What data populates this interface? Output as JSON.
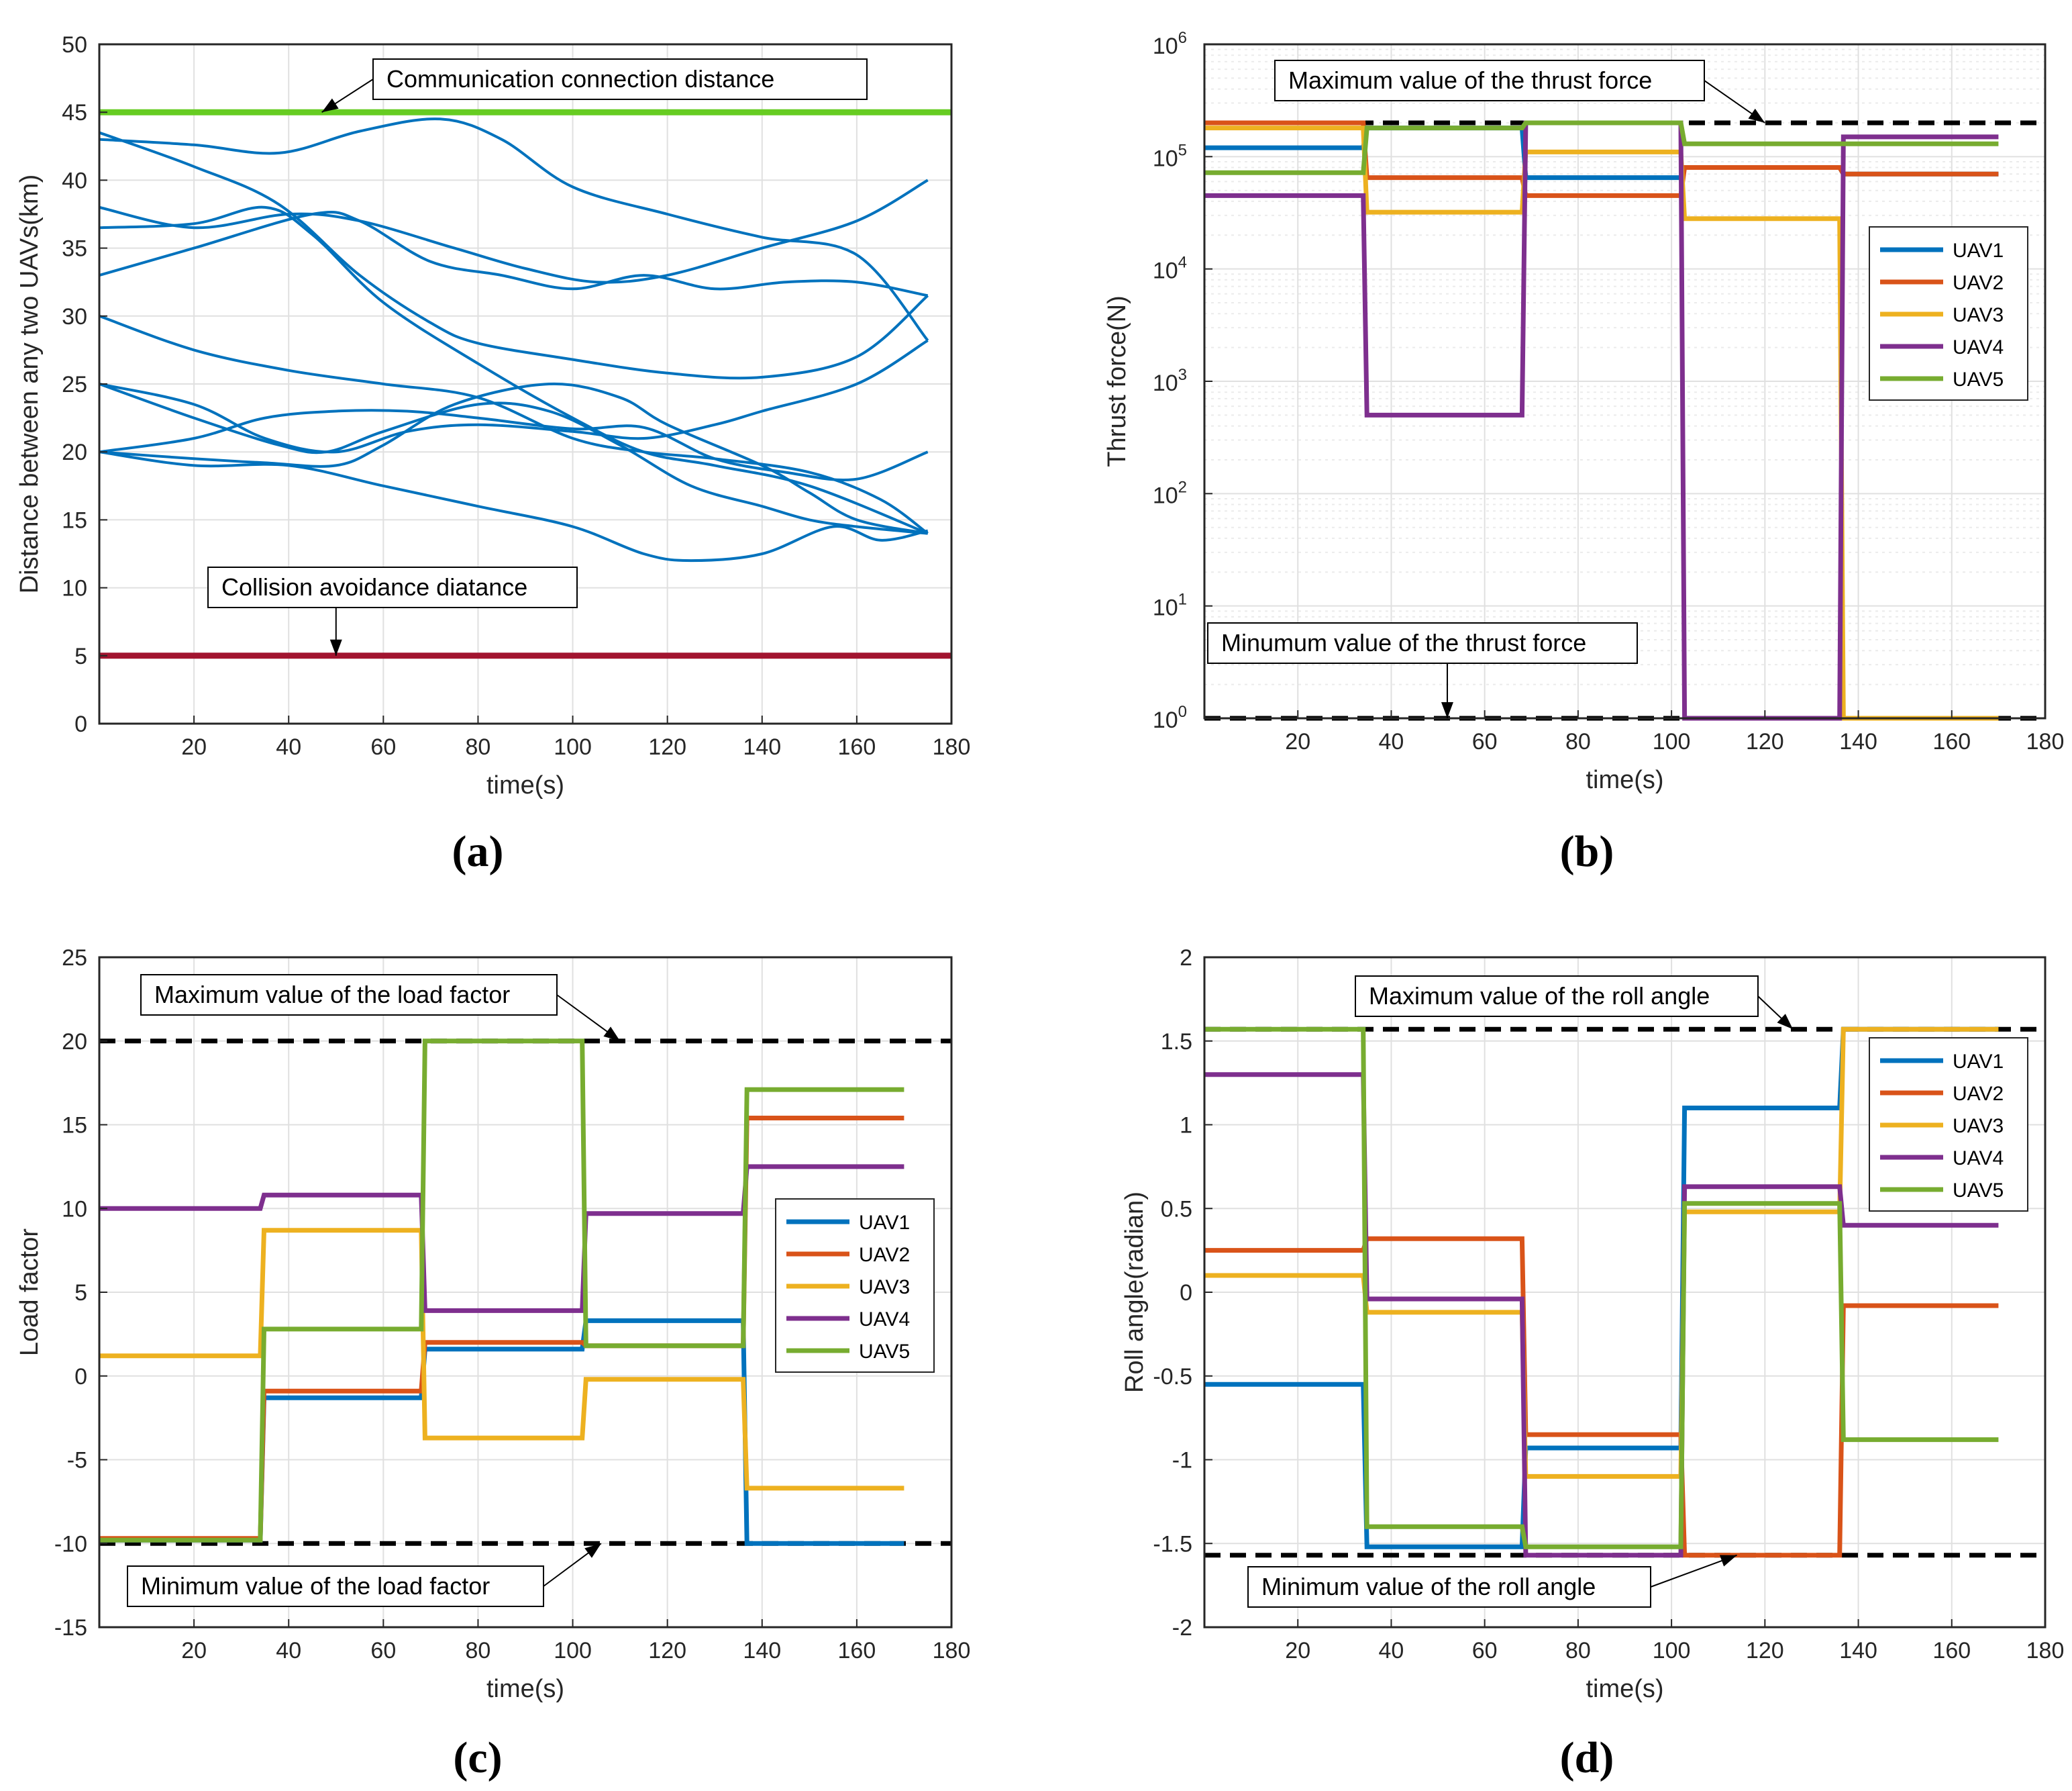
{
  "colors": {
    "UAV1": "#0072BD",
    "UAV2": "#D95319",
    "UAV3": "#EDB120",
    "UAV4": "#7E2F8E",
    "UAV5": "#77AC30",
    "distance": "#0072BD",
    "comm": "#66CC22",
    "collision": "#A2142F",
    "limit": "#000000",
    "grid": "#E0E0E0"
  },
  "chart_data": [
    {
      "id": "a",
      "caption": "(a)",
      "type": "line",
      "xlabel": "time(s)",
      "ylabel": "Distance between any two UAVs(km)",
      "xlim": [
        0,
        180
      ],
      "ylim": [
        0,
        50
      ],
      "xticks": [
        20,
        40,
        60,
        80,
        100,
        120,
        140,
        160,
        180
      ],
      "yticks": [
        0,
        5,
        10,
        15,
        20,
        25,
        30,
        35,
        40,
        45,
        50
      ],
      "grid": true,
      "reference_lines": [
        {
          "name": "communication",
          "value": 45,
          "color": "comm"
        },
        {
          "name": "collision",
          "value": 5,
          "color": "collision"
        }
      ],
      "annotations": [
        {
          "text": "Communication connection distance",
          "target_x": 47,
          "target_y": 45
        },
        {
          "text": "Collision avoidance diatance",
          "target_x": 50,
          "target_y": 5
        }
      ],
      "series": [
        {
          "x": [
            0,
            20,
            38,
            55,
            70,
            80,
            100,
            120,
            140,
            160,
            175
          ],
          "y": [
            43.5,
            41,
            38.2,
            33,
            29.5,
            28,
            26.8,
            25.8,
            25.5,
            27,
            31.5
          ]
        },
        {
          "x": [
            0,
            20,
            38,
            55,
            72,
            85,
            100,
            120,
            140,
            160,
            175
          ],
          "y": [
            43,
            42.6,
            42,
            43.6,
            44.5,
            43,
            39.5,
            37.5,
            35.8,
            34.5,
            28.2
          ]
        },
        {
          "x": [
            0,
            20,
            40,
            55,
            75,
            90,
            105,
            120,
            140,
            160,
            175
          ],
          "y": [
            38,
            36.5,
            37.5,
            37,
            35,
            33.5,
            32.5,
            33,
            35,
            37,
            40
          ]
        },
        {
          "x": [
            0,
            20,
            35,
            45,
            60,
            80,
            100,
            115,
            130,
            150,
            175
          ],
          "y": [
            36.5,
            36.8,
            38,
            36,
            31,
            26.5,
            22.5,
            20,
            19,
            17.5,
            14
          ]
        },
        {
          "x": [
            0,
            20,
            45,
            55,
            70,
            85,
            100,
            115,
            130,
            145,
            160,
            175
          ],
          "y": [
            33,
            35,
            37.5,
            37,
            34,
            33,
            32,
            33,
            32,
            32.5,
            32.5,
            31.5
          ]
        },
        {
          "x": [
            0,
            20,
            40,
            60,
            80,
            100,
            115,
            130,
            150,
            165,
            175
          ],
          "y": [
            30,
            27.5,
            26,
            25,
            24,
            21,
            20,
            19.5,
            18.5,
            16.5,
            14
          ]
        },
        {
          "x": [
            0,
            20,
            35,
            50,
            65,
            80,
            100,
            115,
            130,
            140,
            160,
            175
          ],
          "y": [
            25,
            23.5,
            21,
            20,
            21.5,
            22,
            21.5,
            21,
            22,
            23,
            25,
            28.2
          ]
        },
        {
          "x": [
            0,
            20,
            38,
            48,
            60,
            80,
            95,
            110,
            125,
            140,
            150,
            160,
            175
          ],
          "y": [
            25,
            22.5,
            20.5,
            20,
            21.5,
            23.5,
            23,
            20.5,
            17.5,
            16,
            15,
            14.5,
            14
          ]
        },
        {
          "x": [
            0,
            20,
            35,
            50,
            60,
            75,
            95,
            110,
            120,
            140,
            150,
            160,
            175
          ],
          "y": [
            20,
            19.5,
            19.2,
            19,
            20.5,
            23.5,
            25,
            24,
            22,
            19,
            17,
            15,
            14
          ]
        },
        {
          "x": [
            0,
            20,
            35,
            50,
            65,
            80,
            100,
            115,
            130,
            145,
            160,
            175
          ],
          "y": [
            20,
            21,
            22.5,
            23,
            23,
            22.5,
            21.7,
            21.8,
            19.5,
            18.5,
            18,
            20
          ]
        },
        {
          "x": [
            0,
            20,
            40,
            60,
            80,
            100,
            115,
            125,
            140,
            155,
            165,
            175
          ],
          "y": [
            20,
            19,
            19,
            17.5,
            16,
            14.5,
            12.5,
            12,
            12.5,
            14.5,
            13.5,
            14.2
          ]
        }
      ]
    },
    {
      "id": "b",
      "caption": "(b)",
      "type": "line",
      "scale": "log",
      "xlabel": "time(s)",
      "ylabel": "Thrust force(N)",
      "xlim": [
        0,
        180
      ],
      "ylim_exp": [
        0,
        6
      ],
      "xticks": [
        20,
        40,
        60,
        80,
        100,
        120,
        140,
        160,
        180
      ],
      "yticks_exp": [
        0,
        1,
        2,
        3,
        4,
        5,
        6
      ],
      "ytick_base": "10",
      "grid": true,
      "reference_lines": [
        {
          "name": "max",
          "value": 200000
        },
        {
          "name": "min",
          "value": 1
        }
      ],
      "annotations": [
        {
          "text": "Maximum value of the thrust force",
          "target_x": 120,
          "target_y": 200000
        },
        {
          "text": "Minumum value of the thrust force",
          "target_x": 52,
          "target_y": 1
        }
      ],
      "legend": [
        "UAV1",
        "UAV2",
        "UAV3",
        "UAV4",
        "UAV5"
      ],
      "legend_location": "right",
      "series": [
        {
          "name": "UAV1",
          "x": [
            0,
            34,
            34.8,
            68,
            68.8,
            102,
            102.8,
            136,
            136.8,
            170
          ],
          "y": [
            120000,
            120000,
            180000,
            180000,
            65000,
            65000,
            80000,
            80000,
            70000,
            70000
          ]
        },
        {
          "name": "UAV2",
          "x": [
            0,
            34,
            34.8,
            68,
            68.8,
            102,
            102.8,
            136,
            136.8,
            170
          ],
          "y": [
            200000,
            200000,
            65000,
            65000,
            45000,
            45000,
            80000,
            80000,
            70000,
            70000
          ]
        },
        {
          "name": "UAV3",
          "x": [
            0,
            34,
            34.8,
            68,
            68.8,
            102,
            102.8,
            136,
            136.8,
            170
          ],
          "y": [
            180000,
            180000,
            32000,
            32000,
            110000,
            110000,
            28000,
            28000,
            1,
            1
          ]
        },
        {
          "name": "UAV4",
          "x": [
            0,
            34,
            34.8,
            68,
            68.8,
            102,
            102.8,
            136,
            136.8,
            170
          ],
          "y": [
            45000,
            45000,
            500,
            500,
            200000,
            200000,
            1,
            1,
            150000,
            150000
          ]
        },
        {
          "name": "UAV5",
          "x": [
            0,
            34,
            34.8,
            68,
            68.8,
            102,
            102.8,
            136,
            136.8,
            170
          ],
          "y": [
            72000,
            72000,
            180000,
            180000,
            200000,
            200000,
            130000,
            130000,
            130000,
            130000
          ]
        }
      ]
    },
    {
      "id": "c",
      "caption": "(c)",
      "type": "line",
      "xlabel": "time(s)",
      "ylabel": "Load factor",
      "xlim": [
        0,
        180
      ],
      "ylim": [
        -15,
        25
      ],
      "xticks": [
        20,
        40,
        60,
        80,
        100,
        120,
        140,
        160,
        180
      ],
      "yticks": [
        -15,
        -10,
        -5,
        0,
        5,
        10,
        15,
        20,
        25
      ],
      "grid": true,
      "reference_lines": [
        {
          "name": "max",
          "value": 20
        },
        {
          "name": "min",
          "value": -10
        }
      ],
      "annotations": [
        {
          "text": "Maximum value of the load factor",
          "target_x": 110,
          "target_y": 20
        },
        {
          "text": "Minimum value of the load factor",
          "target_x": 106,
          "target_y": -10
        }
      ],
      "legend": [
        "UAV1",
        "UAV2",
        "UAV3",
        "UAV4",
        "UAV5"
      ],
      "legend_location": "right",
      "series": [
        {
          "name": "UAV1",
          "x": [
            0,
            34,
            34.8,
            68,
            68.8,
            102,
            102.8,
            136,
            136.8,
            170
          ],
          "y": [
            -9.8,
            -9.8,
            -1.3,
            -1.3,
            1.6,
            1.6,
            3.3,
            3.3,
            -10,
            -10
          ]
        },
        {
          "name": "UAV2",
          "x": [
            0,
            34,
            34.8,
            68,
            68.8,
            102,
            102.8,
            136,
            136.8,
            170
          ],
          "y": [
            -9.7,
            -9.7,
            -0.9,
            -0.9,
            2.0,
            2.0,
            1.8,
            1.8,
            15.4,
            15.4
          ]
        },
        {
          "name": "UAV3",
          "x": [
            0,
            34,
            34.8,
            68,
            68.8,
            102,
            102.8,
            136,
            136.8,
            170
          ],
          "y": [
            1.2,
            1.2,
            8.7,
            8.7,
            -3.7,
            -3.7,
            -0.2,
            -0.2,
            -6.7,
            -6.7
          ]
        },
        {
          "name": "UAV4",
          "x": [
            0,
            34,
            34.8,
            68,
            68.8,
            102,
            102.8,
            136,
            136.8,
            170
          ],
          "y": [
            10,
            10,
            10.8,
            10.8,
            3.9,
            3.9,
            9.7,
            9.7,
            12.5,
            12.5
          ]
        },
        {
          "name": "UAV5",
          "x": [
            0,
            34,
            34.8,
            68,
            68.8,
            102,
            102.8,
            136,
            136.8,
            170
          ],
          "y": [
            -9.8,
            -9.8,
            2.8,
            2.8,
            20,
            20,
            1.8,
            1.8,
            17.1,
            17.1
          ]
        }
      ]
    },
    {
      "id": "d",
      "caption": "(d)",
      "type": "line",
      "xlabel": "time(s)",
      "ylabel": "Roll angle(radian)",
      "xlim": [
        0,
        180
      ],
      "ylim": [
        -2,
        2
      ],
      "xticks": [
        20,
        40,
        60,
        80,
        100,
        120,
        140,
        160,
        180
      ],
      "yticks": [
        -2,
        -1.5,
        -1,
        -0.5,
        0,
        0.5,
        1,
        1.5,
        2
      ],
      "grid": true,
      "reference_lines": [
        {
          "name": "max",
          "value": 1.57
        },
        {
          "name": "min",
          "value": -1.57
        }
      ],
      "annotations": [
        {
          "text": "Maximum value of the roll angle",
          "target_x": 126,
          "target_y": 1.57
        },
        {
          "text": "Minimum value of the roll angle",
          "target_x": 114,
          "target_y": -1.57
        }
      ],
      "legend": [
        "UAV1",
        "UAV2",
        "UAV3",
        "UAV4",
        "UAV5"
      ],
      "legend_location": "right",
      "series": [
        {
          "name": "UAV1",
          "x": [
            0,
            34,
            34.8,
            68,
            68.8,
            102,
            102.8,
            136,
            136.8,
            170
          ],
          "y": [
            -0.55,
            -0.55,
            -1.52,
            -1.52,
            -0.93,
            -0.93,
            1.1,
            1.1,
            1.57,
            1.57
          ]
        },
        {
          "name": "UAV2",
          "x": [
            0,
            34,
            34.8,
            68,
            68.8,
            102,
            102.8,
            136,
            136.8,
            170
          ],
          "y": [
            0.25,
            0.25,
            0.32,
            0.32,
            -0.85,
            -0.85,
            -1.57,
            -1.57,
            -0.08,
            -0.08
          ]
        },
        {
          "name": "UAV3",
          "x": [
            0,
            34,
            34.8,
            68,
            68.8,
            102,
            102.8,
            136,
            136.8,
            170
          ],
          "y": [
            0.1,
            0.1,
            -0.12,
            -0.12,
            -1.1,
            -1.1,
            0.48,
            0.48,
            1.57,
            1.57
          ]
        },
        {
          "name": "UAV4",
          "x": [
            0,
            34,
            34.8,
            68,
            68.8,
            102,
            102.8,
            136,
            136.8,
            170
          ],
          "y": [
            1.3,
            1.3,
            -0.04,
            -0.04,
            -1.57,
            -1.57,
            0.63,
            0.63,
            0.4,
            0.4
          ]
        },
        {
          "name": "UAV5",
          "x": [
            0,
            34,
            34.8,
            68,
            68.8,
            102,
            102.8,
            136,
            136.8,
            170
          ],
          "y": [
            1.57,
            1.57,
            -1.4,
            -1.4,
            -1.52,
            -1.52,
            0.53,
            0.53,
            -0.88,
            -0.88
          ]
        }
      ]
    }
  ]
}
